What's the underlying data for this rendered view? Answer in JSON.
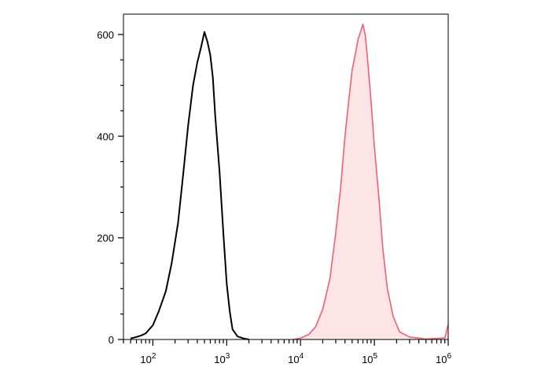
{
  "chart_data": {
    "type": "area",
    "title": "",
    "xlabel": "",
    "ylabel": "",
    "x_scale": "log",
    "xlim": [
      40,
      1000000
    ],
    "ylim": [
      0,
      640
    ],
    "grid": false,
    "legend": "none",
    "y_ticks": [
      {
        "value": 0,
        "label": "0"
      },
      {
        "value": 200,
        "label": "200"
      },
      {
        "value": 400,
        "label": "400"
      },
      {
        "value": 600,
        "label": "600"
      }
    ],
    "x_ticks": [
      {
        "value": 100,
        "base": "10",
        "exp": "2"
      },
      {
        "value": 1000,
        "base": "10",
        "exp": "3"
      },
      {
        "value": 10000,
        "base": "10",
        "exp": "4"
      },
      {
        "value": 100000,
        "base": "10",
        "exp": "5"
      },
      {
        "value": 1000000,
        "base": "10",
        "exp": "6"
      }
    ],
    "series": [
      {
        "style": "outline",
        "color": "#000000",
        "x": [
          50,
          60,
          70,
          80,
          100,
          120,
          150,
          180,
          220,
          260,
          300,
          350,
          400,
          450,
          500,
          550,
          600,
          650,
          700,
          800,
          900,
          1000,
          1100,
          1200,
          1400,
          1700,
          2000
        ],
        "values": [
          2,
          5,
          8,
          12,
          28,
          55,
          95,
          150,
          230,
          330,
          420,
          500,
          545,
          575,
          605,
          585,
          560,
          515,
          440,
          330,
          210,
          110,
          55,
          20,
          6,
          2,
          0
        ]
      },
      {
        "style": "filled",
        "color": "#f06070",
        "fill": "#fde4e6",
        "x": [
          8000,
          10000,
          13000,
          16000,
          20000,
          25000,
          30000,
          35000,
          40000,
          45000,
          50000,
          55000,
          60000,
          65000,
          70000,
          75000,
          80000,
          90000,
          100000,
          115000,
          130000,
          150000,
          180000,
          220000,
          300000,
          500000,
          900000,
          1000000
        ],
        "values": [
          0,
          3,
          10,
          25,
          60,
          120,
          210,
          300,
          400,
          470,
          530,
          560,
          590,
          605,
          620,
          600,
          560,
          470,
          380,
          280,
          180,
          100,
          45,
          15,
          5,
          1,
          3,
          30
        ]
      }
    ]
  }
}
